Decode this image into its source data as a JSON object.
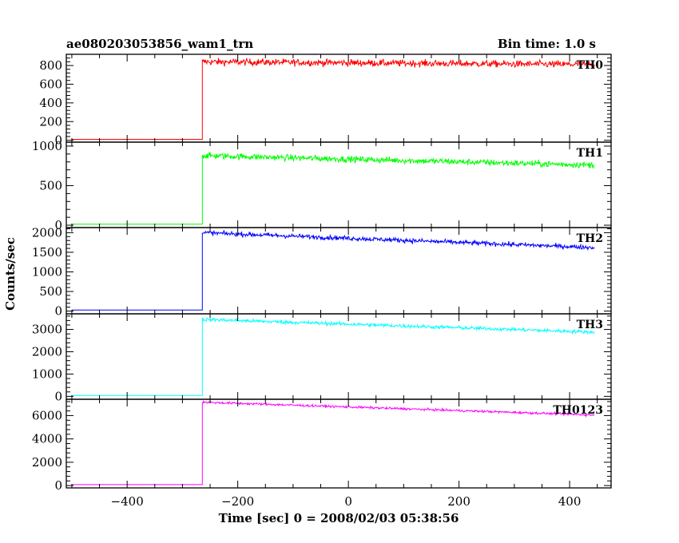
{
  "chart_data": {
    "type": "line",
    "header_left": "ae080203053856_wam1_trn",
    "header_right": "Bin time: 1.0 s",
    "xlabel": "Time [sec] 0 = 2008/02/03 05:38:56",
    "ylabel": "Counts/sec",
    "xlim": [
      -510,
      475
    ],
    "xticks": [
      -400,
      -200,
      0,
      200,
      400
    ],
    "x_start": -500,
    "x_end": 445,
    "trigger_time": -264,
    "grid": false,
    "panels": [
      {
        "name": "TH0",
        "color": "#ff0000",
        "ylim": [
          -20,
          920
        ],
        "yticks": [
          0,
          200,
          400,
          600,
          800
        ],
        "background": 10,
        "level_start": 840,
        "level_end": 810,
        "noise": 35
      },
      {
        "name": "TH1",
        "color": "#00ff00",
        "ylim": [
          -30,
          1050
        ],
        "yticks": [
          0,
          500,
          1000
        ],
        "background": 12,
        "level_start": 880,
        "level_end": 760,
        "noise": 38
      },
      {
        "name": "TH2",
        "color": "#0000ff",
        "ylim": [
          -70,
          2130
        ],
        "yticks": [
          0,
          500,
          1000,
          1500,
          2000
        ],
        "background": 25,
        "level_start": 2000,
        "level_end": 1620,
        "noise": 55
      },
      {
        "name": "TH3",
        "color": "#00ffff",
        "ylim": [
          -130,
          3700
        ],
        "yticks": [
          0,
          1000,
          2000,
          3000
        ],
        "background": 40,
        "level_start": 3450,
        "level_end": 2880,
        "noise": 75
      },
      {
        "name": "TH0123",
        "color": "#ff00ff",
        "ylim": [
          -200,
          7400
        ],
        "yticks": [
          0,
          2000,
          4000,
          6000
        ],
        "background": 80,
        "level_start": 7150,
        "level_end": 6050,
        "noise": 90
      }
    ]
  }
}
